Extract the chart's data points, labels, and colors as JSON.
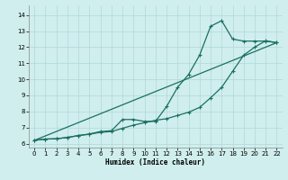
{
  "xlabel": "Humidex (Indice chaleur)",
  "background_color": "#d0eeee",
  "grid_color": "#b0d8d8",
  "line_color": "#1a7060",
  "xlim": [
    -0.5,
    22.5
  ],
  "ylim": [
    5.75,
    14.6
  ],
  "xticks": [
    0,
    1,
    2,
    3,
    4,
    5,
    6,
    7,
    8,
    9,
    10,
    11,
    12,
    13,
    14,
    15,
    16,
    17,
    18,
    19,
    20,
    21,
    22
  ],
  "yticks": [
    6,
    7,
    8,
    9,
    10,
    11,
    12,
    13,
    14
  ],
  "line1_x": [
    0,
    1,
    2,
    3,
    4,
    5,
    6,
    7,
    8,
    9,
    10,
    11,
    12,
    13,
    14,
    15,
    16,
    17,
    18,
    19,
    20,
    21,
    22
  ],
  "line1_y": [
    6.2,
    6.28,
    6.3,
    6.38,
    6.5,
    6.58,
    6.7,
    6.75,
    6.95,
    7.15,
    7.3,
    7.45,
    7.55,
    7.75,
    7.95,
    8.25,
    8.85,
    9.5,
    10.5,
    11.5,
    12.0,
    12.4,
    12.28
  ],
  "line2_x": [
    0,
    1,
    2,
    3,
    4,
    5,
    6,
    7,
    8,
    9,
    10,
    11,
    12,
    13,
    14,
    15,
    16,
    17,
    18,
    19,
    20,
    21,
    22
  ],
  "line2_y": [
    6.2,
    6.28,
    6.3,
    6.38,
    6.5,
    6.6,
    6.75,
    6.8,
    7.5,
    7.5,
    7.38,
    7.38,
    8.3,
    9.5,
    10.3,
    11.5,
    13.3,
    13.65,
    12.5,
    12.38,
    12.38,
    12.38,
    12.28
  ],
  "line3_x": [
    0,
    22
  ],
  "line3_y": [
    6.2,
    12.28
  ]
}
